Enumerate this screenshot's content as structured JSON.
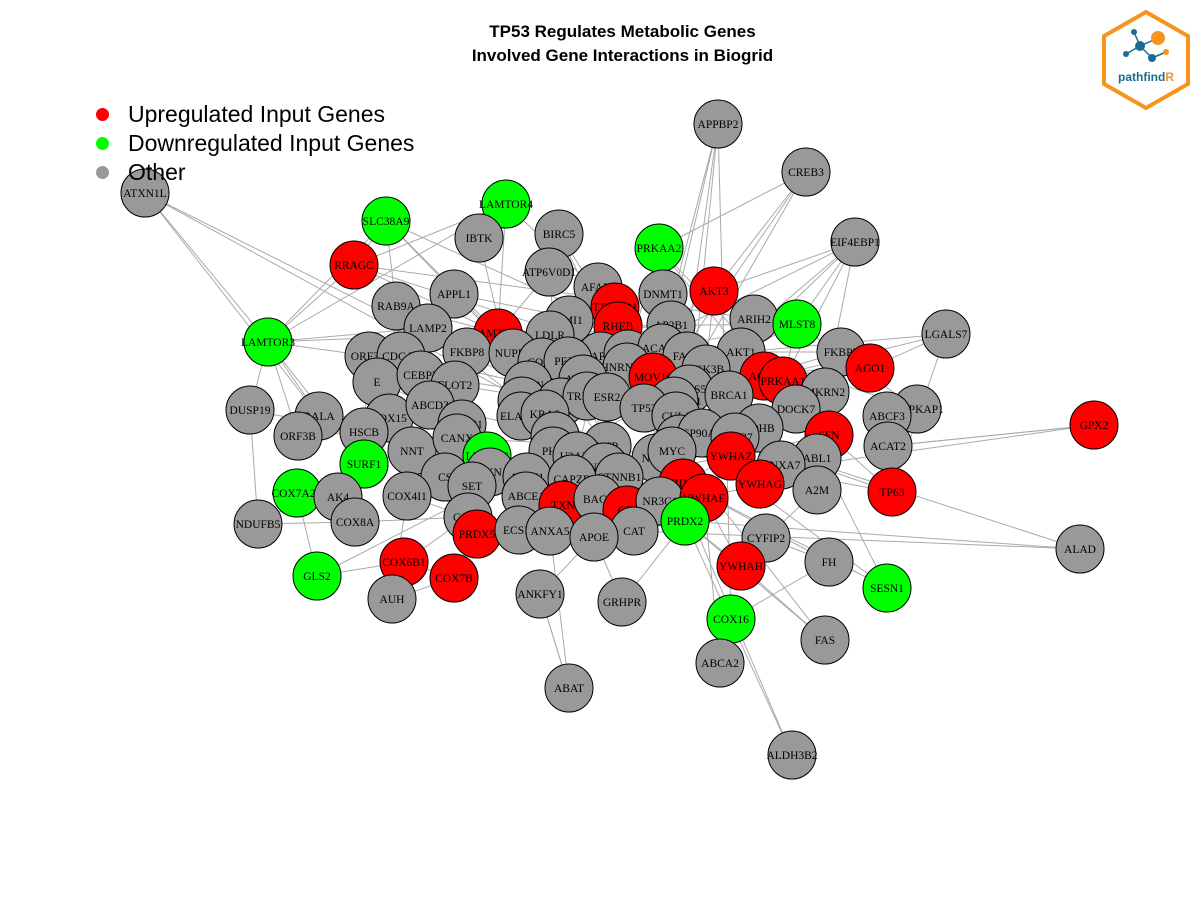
{
  "title": {
    "line1": "TP53 Regulates Metabolic Genes",
    "line2": "Involved Gene Interactions in Biogrid"
  },
  "legend": [
    {
      "label": "Upregulated Input Genes",
      "color": "#ff0000"
    },
    {
      "label": "Downregulated Input Genes",
      "color": "#00ff00"
    },
    {
      "label": "Other",
      "color": "#999999"
    }
  ],
  "logo": {
    "text_main": "pathfind",
    "text_accent": "R",
    "border_color": "#f7941d",
    "accent_color": "#f7941d",
    "text_color": "#1b6c8e"
  },
  "colors": {
    "up": "#ff0000",
    "down": "#00ff00",
    "other": "#999999",
    "edge": "#aaaaaa"
  },
  "nodes": [
    {
      "id": "ATXN1L",
      "type": "other"
    },
    {
      "id": "APPBP2",
      "type": "other"
    },
    {
      "id": "CREB3",
      "type": "other"
    },
    {
      "id": "EIF4EBP1",
      "type": "other"
    },
    {
      "id": "SLC38A9",
      "type": "down"
    },
    {
      "id": "LAMTOR4",
      "type": "down"
    },
    {
      "id": "IBTK",
      "type": "other"
    },
    {
      "id": "BIRC5",
      "type": "other"
    },
    {
      "id": "PRKAA2",
      "type": "down"
    },
    {
      "id": "RRAGC",
      "type": "up"
    },
    {
      "id": "ATP6V0D1",
      "type": "other"
    },
    {
      "id": "AKT3",
      "type": "up"
    },
    {
      "id": "AFAP1",
      "type": "other"
    },
    {
      "id": "DNMT1",
      "type": "other"
    },
    {
      "id": "TXNRD1",
      "type": "up"
    },
    {
      "id": "APPL1",
      "type": "other"
    },
    {
      "id": "RAB9A",
      "type": "other"
    },
    {
      "id": "BMI1",
      "type": "other"
    },
    {
      "id": "ARIH2",
      "type": "other"
    },
    {
      "id": "MLST8",
      "type": "down"
    },
    {
      "id": "LGALS7",
      "type": "other"
    },
    {
      "id": "LAMTOR3",
      "type": "down"
    },
    {
      "id": "LAMP2",
      "type": "other"
    },
    {
      "id": "LAMTOR1",
      "type": "up"
    },
    {
      "id": "RHEB",
      "type": "up"
    },
    {
      "id": "AP2B1",
      "type": "other"
    },
    {
      "id": "LDLR",
      "type": "other"
    },
    {
      "id": "FKBP5",
      "type": "other"
    },
    {
      "id": "AGO1",
      "type": "up"
    },
    {
      "id": "ORF3A",
      "type": "other"
    },
    {
      "id": "CDCA3",
      "type": "other"
    },
    {
      "id": "FKBP8",
      "type": "other"
    },
    {
      "id": "NUPR1",
      "type": "other"
    },
    {
      "id": "CAPN2",
      "type": "other"
    },
    {
      "id": "RPTOR",
      "type": "other"
    },
    {
      "id": "ACACA",
      "type": "other"
    },
    {
      "id": "FASN",
      "type": "other"
    },
    {
      "id": "AKT1",
      "type": "other"
    },
    {
      "id": "E",
      "type": "other"
    },
    {
      "id": "CEBPZ",
      "type": "other"
    },
    {
      "id": "COPA",
      "type": "other"
    },
    {
      "id": "PEX1",
      "type": "other"
    },
    {
      "id": "HNRNPH1",
      "type": "other"
    },
    {
      "id": "GSK3B",
      "type": "other"
    },
    {
      "id": "AGO2",
      "type": "up"
    },
    {
      "id": "PRKAA1",
      "type": "up"
    },
    {
      "id": "MKRN2",
      "type": "other"
    },
    {
      "id": "MAPKAP1",
      "type": "other"
    },
    {
      "id": "DUSP19",
      "type": "other"
    },
    {
      "id": "FLOT2",
      "type": "other"
    },
    {
      "id": "ANLN",
      "type": "other"
    },
    {
      "id": "ATXN3",
      "type": "other"
    },
    {
      "id": "MOV10",
      "type": "up"
    },
    {
      "id": "COPS5",
      "type": "other"
    },
    {
      "id": "BRCA1",
      "type": "other"
    },
    {
      "id": "ABCF3",
      "type": "other"
    },
    {
      "id": "RALA",
      "type": "other"
    },
    {
      "id": "COX15",
      "type": "other"
    },
    {
      "id": "ABCD3",
      "type": "other"
    },
    {
      "id": "CUL4A",
      "type": "other"
    },
    {
      "id": "EGFR",
      "type": "other"
    },
    {
      "id": "TRIM25",
      "type": "other"
    },
    {
      "id": "ESR2",
      "type": "other"
    },
    {
      "id": "HSP90AA1",
      "type": "other"
    },
    {
      "id": "DOCK7",
      "type": "other"
    },
    {
      "id": "ORF3B",
      "type": "other"
    },
    {
      "id": "HSCB",
      "type": "other"
    },
    {
      "id": "BCAP31",
      "type": "other"
    },
    {
      "id": "ELAVL1",
      "type": "other"
    },
    {
      "id": "KRAS",
      "type": "other"
    },
    {
      "id": "TP53",
      "type": "other"
    },
    {
      "id": "CUL1",
      "type": "other"
    },
    {
      "id": "LDHB",
      "type": "other"
    },
    {
      "id": "ACAT2",
      "type": "other"
    },
    {
      "id": "SFN",
      "type": "up"
    },
    {
      "id": "GPX2",
      "type": "up"
    },
    {
      "id": "NNT",
      "type": "other"
    },
    {
      "id": "CANX",
      "type": "other"
    },
    {
      "id": "ACTB",
      "type": "other"
    },
    {
      "id": "HSPA5",
      "type": "other"
    },
    {
      "id": "HSP90AB1",
      "type": "other"
    },
    {
      "id": "CDC37",
      "type": "other"
    },
    {
      "id": "ABL1",
      "type": "other"
    },
    {
      "id": "SURF1",
      "type": "down"
    },
    {
      "id": "LRPPRC",
      "type": "down"
    },
    {
      "id": "PHB",
      "type": "other"
    },
    {
      "id": "VCP",
      "type": "other"
    },
    {
      "id": "NXF1",
      "type": "other"
    },
    {
      "id": "MYC",
      "type": "other"
    },
    {
      "id": "YWHAZ",
      "type": "up"
    },
    {
      "id": "ANXA7",
      "type": "other"
    },
    {
      "id": "SFXN1",
      "type": "other"
    },
    {
      "id": "AIFM1",
      "type": "other"
    },
    {
      "id": "U2AF2",
      "type": "other"
    },
    {
      "id": "HNRNPU",
      "type": "other"
    },
    {
      "id": "CTNNB1",
      "type": "other"
    },
    {
      "id": "PRDX1",
      "type": "up"
    },
    {
      "id": "YWHAG",
      "type": "up"
    },
    {
      "id": "TP63",
      "type": "up"
    },
    {
      "id": "COX7A2L",
      "type": "down"
    },
    {
      "id": "AK4",
      "type": "other"
    },
    {
      "id": "CS",
      "type": "other"
    },
    {
      "id": "SET",
      "type": "other"
    },
    {
      "id": "COX4I1",
      "type": "other"
    },
    {
      "id": "ABCE1",
      "type": "other"
    },
    {
      "id": "CAPZB",
      "type": "other"
    },
    {
      "id": "TXN",
      "type": "up"
    },
    {
      "id": "BAG3",
      "type": "other"
    },
    {
      "id": "GPI",
      "type": "up"
    },
    {
      "id": "NR3C1",
      "type": "other"
    },
    {
      "id": "YWHAE",
      "type": "up"
    },
    {
      "id": "A2M",
      "type": "other"
    },
    {
      "id": "NDUFB5",
      "type": "other"
    },
    {
      "id": "COX8A",
      "type": "other"
    },
    {
      "id": "COX2",
      "type": "other"
    },
    {
      "id": "PRDX5",
      "type": "up"
    },
    {
      "id": "ECSIT",
      "type": "other"
    },
    {
      "id": "ANXA5",
      "type": "other"
    },
    {
      "id": "CAT",
      "type": "other"
    },
    {
      "id": "PRDX2",
      "type": "down"
    },
    {
      "id": "CYFIP2",
      "type": "other"
    },
    {
      "id": "ALAD",
      "type": "other"
    },
    {
      "id": "COX6B1",
      "type": "up"
    },
    {
      "id": "APOE",
      "type": "other"
    },
    {
      "id": "GLS2",
      "type": "down"
    },
    {
      "id": "COX7B",
      "type": "up"
    },
    {
      "id": "YWHAH",
      "type": "up"
    },
    {
      "id": "FH",
      "type": "other"
    },
    {
      "id": "SESN1",
      "type": "down"
    },
    {
      "id": "AUH",
      "type": "other"
    },
    {
      "id": "ANKFY1",
      "type": "other"
    },
    {
      "id": "GRHPR",
      "type": "other"
    },
    {
      "id": "COX16",
      "type": "down"
    },
    {
      "id": "FAS",
      "type": "other"
    },
    {
      "id": "ABCA2",
      "type": "other"
    },
    {
      "id": "ABAT",
      "type": "other"
    },
    {
      "id": "ALDH3B2",
      "type": "other"
    }
  ],
  "edges": [
    [
      "ATXN1L",
      "RALA"
    ],
    [
      "ATXN1L",
      "LAMTOR3"
    ],
    [
      "ATXN1L",
      "ANLN"
    ],
    [
      "ATXN1L",
      "VCP"
    ],
    [
      "APPBP2",
      "TP53"
    ],
    [
      "APPBP2",
      "PRDX1"
    ],
    [
      "APPBP2",
      "COX16"
    ],
    [
      "APPBP2",
      "MYC"
    ],
    [
      "APPBP2",
      "AP2B1"
    ],
    [
      "CREB3",
      "TP53"
    ],
    [
      "CREB3",
      "AKT3"
    ],
    [
      "CREB3",
      "PRKAA2"
    ],
    [
      "CREB3",
      "HSP90AA1"
    ],
    [
      "EIF4EBP1",
      "AKT1"
    ],
    [
      "EIF4EBP1",
      "RPTOR"
    ],
    [
      "EIF4EBP1",
      "MLST8"
    ],
    [
      "EIF4EBP1",
      "AKT3"
    ],
    [
      "EIF4EBP1",
      "GSK3B"
    ],
    [
      "EIF4EBP1",
      "PRKAA1"
    ],
    [
      "EIF4EBP1",
      "MKRN2"
    ],
    [
      "SLC38A9",
      "RRAGC"
    ],
    [
      "SLC38A9",
      "LAMTOR1"
    ],
    [
      "SLC38A9",
      "RHEB"
    ],
    [
      "SLC38A9",
      "LAMTOR3"
    ],
    [
      "SLC38A9",
      "RAB9A"
    ],
    [
      "SLC38A9",
      "EGFR"
    ],
    [
      "LAMTOR4",
      "LAMTOR1"
    ],
    [
      "LAMTOR4",
      "RRAGC"
    ],
    [
      "LAMTOR4",
      "LAMTOR3"
    ],
    [
      "LAMTOR4",
      "TXNRD1"
    ],
    [
      "IBTK",
      "ELAVL1"
    ],
    [
      "BIRC5",
      "TP53"
    ],
    [
      "BIRC5",
      "CUL1"
    ],
    [
      "PRKAA2",
      "TP53"
    ],
    [
      "PRKAA2",
      "RPTOR"
    ],
    [
      "PRKAA2",
      "AKT1"
    ],
    [
      "PRKAA2",
      "PRKAA1"
    ],
    [
      "PRKAA2",
      "FASN"
    ],
    [
      "RRAGC",
      "LAMTOR3"
    ],
    [
      "RRAGC",
      "RPTOR"
    ],
    [
      "RRAGC",
      "LAMTOR1"
    ],
    [
      "RRAGC",
      "MLST8"
    ],
    [
      "ATP6V0D1",
      "LAMTOR1"
    ],
    [
      "ATP6V0D1",
      "EGFR"
    ],
    [
      "AKT3",
      "GSK3B"
    ],
    [
      "AKT3",
      "RPTOR"
    ],
    [
      "AKT3",
      "MLST8"
    ],
    [
      "AFAP1",
      "EGFR"
    ],
    [
      "DNMT1",
      "TP53"
    ],
    [
      "DNMT1",
      "HSP90AA1"
    ],
    [
      "TXNRD1",
      "TXN"
    ],
    [
      "TXNRD1",
      "PRDX1"
    ],
    [
      "TXNRD1",
      "EGFR"
    ],
    [
      "APPL1",
      "AKT1"
    ],
    [
      "APPL1",
      "EGFR"
    ],
    [
      "RAB9A",
      "LAMTOR1"
    ],
    [
      "RAB9A",
      "COX15"
    ],
    [
      "BMI1",
      "TP53"
    ],
    [
      "BMI1",
      "CUL4A"
    ],
    [
      "ARIH2",
      "CUL1"
    ],
    [
      "ARIH2",
      "AGO2"
    ],
    [
      "MLST8",
      "RPTOR"
    ],
    [
      "MLST8",
      "AKT1"
    ],
    [
      "MLST8",
      "MAPKAP1"
    ],
    [
      "MLST8",
      "PRKAA1"
    ],
    [
      "LGALS7",
      "TP53"
    ],
    [
      "LGALS7",
      "AKT1"
    ],
    [
      "LGALS7",
      "AGO1"
    ],
    [
      "LGALS7",
      "TP63"
    ],
    [
      "LAMTOR3",
      "LAMTOR1"
    ],
    [
      "LAMTOR3",
      "RALA"
    ],
    [
      "LAMTOR3",
      "ORF3A"
    ],
    [
      "LAMTOR3",
      "LAMP2"
    ],
    [
      "LAMTOR3",
      "SURF1"
    ],
    [
      "LAMTOR3",
      "ORF3B"
    ],
    [
      "LAMTOR3",
      "DUSP19"
    ],
    [
      "LAMP2",
      "HNRNPU"
    ],
    [
      "LAMTOR1",
      "RPTOR"
    ],
    [
      "LAMTOR1",
      "RHEB"
    ],
    [
      "LAMTOR1",
      "LDLR"
    ],
    [
      "RHEB",
      "RPTOR"
    ],
    [
      "RHEB",
      "MLST8"
    ],
    [
      "RHEB",
      "AKT1"
    ],
    [
      "AP2B1",
      "EGFR"
    ],
    [
      "AP2B1",
      "LDLR"
    ],
    [
      "LDLR",
      "ESR2"
    ],
    [
      "FKBP5",
      "AKT1"
    ],
    [
      "FKBP5",
      "HSP90AA1"
    ],
    [
      "AGO1",
      "AGO2"
    ],
    [
      "AGO1",
      "MOV10"
    ],
    [
      "AGO1",
      "ELAVL1"
    ],
    [
      "ORF3A",
      "HSCB"
    ],
    [
      "CDCA3",
      "CUL1"
    ],
    [
      "FKBP8",
      "HSP90AA1"
    ],
    [
      "NUPR1",
      "TP53"
    ],
    [
      "CAPN2",
      "EGFR"
    ],
    [
      "RPTOR",
      "AKT1"
    ],
    [
      "RPTOR",
      "PRKAA1"
    ],
    [
      "ACACA",
      "PRKAA1"
    ],
    [
      "FASN",
      "AKT1"
    ],
    [
      "AKT1",
      "GSK3B"
    ],
    [
      "AKT1",
      "TP53"
    ],
    [
      "AKT1",
      "MAPKAP1"
    ],
    [
      "AKT1",
      "HSP90AA1"
    ],
    [
      "AKT1",
      "YWHAZ"
    ],
    [
      "E",
      "COX15"
    ],
    [
      "CEBPZ",
      "TP53"
    ],
    [
      "COPA",
      "VCP"
    ],
    [
      "PEX1",
      "VCP"
    ],
    [
      "HNRNPH1",
      "ELAVL1"
    ],
    [
      "GSK3B",
      "CTNNB1"
    ],
    [
      "GSK3B",
      "MYC"
    ],
    [
      "AGO2",
      "MOV10"
    ],
    [
      "AGO2",
      "HSP90AA1"
    ],
    [
      "PRKAA1",
      "TP53"
    ],
    [
      "MKRN2",
      "AKT1"
    ],
    [
      "MAPKAP1",
      "ABCF3"
    ],
    [
      "DUSP19",
      "HSCB"
    ],
    [
      "FLOT2",
      "EGFR"
    ],
    [
      "ANLN",
      "HNRNPU"
    ],
    [
      "ATXN3",
      "VCP"
    ],
    [
      "MOV10",
      "ELAVL1"
    ],
    [
      "COPS5",
      "CUL1"
    ],
    [
      "BRCA1",
      "TP53"
    ],
    [
      "ABCF3",
      "ACAT2"
    ],
    [
      "RALA",
      "COX15"
    ],
    [
      "COX15",
      "SURF1"
    ],
    [
      "ABCD3",
      "VCP"
    ],
    [
      "CUL4A",
      "TP53"
    ],
    [
      "EGFR",
      "KRAS"
    ],
    [
      "TRIM25",
      "TP53"
    ],
    [
      "ESR2",
      "TP53"
    ],
    [
      "HSP90AA1",
      "CDC37"
    ],
    [
      "DOCK7",
      "YWHAZ"
    ],
    [
      "ORF3B",
      "HSCB"
    ],
    [
      "HSCB",
      "NNT"
    ],
    [
      "BCAP31",
      "CANX"
    ],
    [
      "ELAVL1",
      "TP53"
    ],
    [
      "KRAS",
      "TP53"
    ],
    [
      "TP53",
      "MYC"
    ],
    [
      "CUL1",
      "MYC"
    ],
    [
      "LDHB",
      "YWHAG"
    ],
    [
      "ACAT2",
      "GPX2"
    ],
    [
      "SFN",
      "TP63"
    ],
    [
      "SFN",
      "YWHAZ"
    ],
    [
      "GPX2",
      "PRDX1"
    ],
    [
      "NNT",
      "SURF1"
    ],
    [
      "CANX",
      "AIFM1"
    ],
    [
      "ACTB",
      "PHB"
    ],
    [
      "HSPA5",
      "HSP90AB1"
    ],
    [
      "HSP90AB1",
      "CDC37"
    ],
    [
      "ABL1",
      "A2M"
    ],
    [
      "SURF1",
      "COX7A2L"
    ],
    [
      "LRPPRC",
      "SFXN1"
    ],
    [
      "PHB",
      "VCP"
    ],
    [
      "VCP",
      "NXF1"
    ],
    [
      "NXF1",
      "MYC"
    ],
    [
      "YWHAZ",
      "YWHAE"
    ],
    [
      "ANXA7",
      "YWHAG"
    ],
    [
      "SFXN1",
      "AIFM1"
    ],
    [
      "AIFM1",
      "CS"
    ],
    [
      "U2AF2",
      "HNRNPU"
    ],
    [
      "CTNNB1",
      "NR3C1"
    ],
    [
      "PRDX1",
      "TXN"
    ],
    [
      "YWHAG",
      "YWHAE"
    ],
    [
      "TP63",
      "TP53"
    ],
    [
      "COX7A2L",
      "AK4"
    ],
    [
      "AK4",
      "COX8A"
    ],
    [
      "CS",
      "SET"
    ],
    [
      "COX4I1",
      "COX2"
    ],
    [
      "ABCE1",
      "ECSIT"
    ],
    [
      "CAPZB",
      "BAG3"
    ],
    [
      "TXN",
      "PRDX5"
    ],
    [
      "BAG3",
      "GPI"
    ],
    [
      "GPI",
      "CAT"
    ],
    [
      "NR3C1",
      "YWHAE"
    ],
    [
      "YWHAE",
      "YWHAH"
    ],
    [
      "A2M",
      "CYFIP2"
    ],
    [
      "NDUFB5",
      "COX8A"
    ],
    [
      "COX8A",
      "COX2"
    ],
    [
      "COX2",
      "COX6B1"
    ],
    [
      "PRDX5",
      "COX7B"
    ],
    [
      "ECSIT",
      "ANXA5"
    ],
    [
      "ANXA5",
      "APOE"
    ],
    [
      "CAT",
      "PRDX2"
    ],
    [
      "PRDX2",
      "YWHAH"
    ],
    [
      "CYFIP2",
      "FH"
    ],
    [
      "ALAD",
      "TP53"
    ],
    [
      "ALAD",
      "CAT"
    ],
    [
      "COX6B1",
      "COX7B"
    ],
    [
      "APOE",
      "ANKFY1"
    ],
    [
      "GLS2",
      "COX6B1"
    ],
    [
      "GLS2",
      "TP53"
    ],
    [
      "COX7B",
      "AUH"
    ],
    [
      "YWHAH",
      "FAS"
    ],
    [
      "FH",
      "COX16"
    ],
    [
      "SESN1",
      "TP53"
    ],
    [
      "SESN1",
      "PRKAA1"
    ],
    [
      "AUH",
      "COX4I1"
    ],
    [
      "ANKFY1",
      "ABAT"
    ],
    [
      "GRHPR",
      "APOE"
    ],
    [
      "COX16",
      "ABCA2"
    ],
    [
      "FAS",
      "TP53"
    ],
    [
      "ABCA2",
      "YWHAE"
    ],
    [
      "ABAT",
      "ANXA5"
    ],
    [
      "ALDH3B2",
      "PRDX2"
    ],
    [
      "ALDH3B2",
      "TP53"
    ],
    [
      "NDUFB5",
      "SURF1"
    ],
    [
      "NDUFB5",
      "DUSP19"
    ],
    [
      "GLS2",
      "COX7A2L"
    ],
    [
      "SESN1",
      "PRDX1"
    ],
    [
      "FH",
      "PRDX1"
    ],
    [
      "FAS",
      "PRDX2"
    ],
    [
      "ABAT",
      "ANKFY1"
    ],
    [
      "GRHPR",
      "YWHAE"
    ],
    [
      "ALAD",
      "PRDX2"
    ],
    [
      "GPX2",
      "ACAT2"
    ],
    [
      "TP63",
      "MYC"
    ],
    [
      "A2M",
      "TP53"
    ],
    [
      "LDHB",
      "HSP90AA1"
    ],
    [
      "DOCK7",
      "HSP90AA1"
    ],
    [
      "MKRN2",
      "TP53"
    ],
    [
      "BRCA1",
      "HSP90AA1"
    ],
    [
      "CAPN2",
      "RPTOR"
    ],
    [
      "ACACA",
      "FASN"
    ],
    [
      "COPS5",
      "TP53"
    ],
    [
      "TRIM25",
      "EGFR"
    ],
    [
      "ANLN",
      "CUL4A"
    ],
    [
      "FLOT2",
      "CEBPZ"
    ],
    [
      "E",
      "ABCD3"
    ],
    [
      "RALA",
      "NNT"
    ],
    [
      "HSCB",
      "SURF1"
    ],
    [
      "CANX",
      "VCP"
    ],
    [
      "ACTB",
      "HNRNPU"
    ],
    [
      "U2AF2",
      "CTNNB1"
    ],
    [
      "CTNNB1",
      "YWHAZ"
    ],
    [
      "PRDX1",
      "YWHAZ"
    ],
    [
      "GPI",
      "TXN"
    ],
    [
      "ECSIT",
      "COX2"
    ],
    [
      "APOE",
      "CAT"
    ]
  ]
}
